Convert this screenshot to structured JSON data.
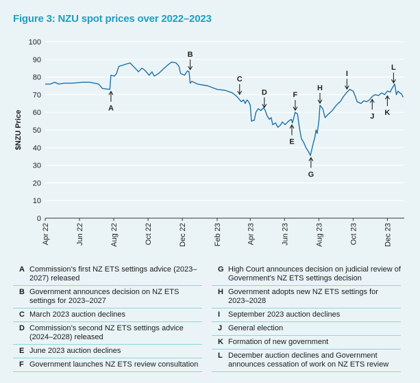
{
  "title": "Figure 3: NZU spot prices over 2022–2023",
  "colors": {
    "title": "#1e9fbf",
    "line": "#1f6fa8",
    "grid": "#ffffff",
    "rule": "#8fd3e0"
  },
  "chart_data": {
    "type": "line",
    "title": "Figure 3: NZU spot prices over 2022–2023",
    "ylabel": "$NZU Price",
    "xlabel": "",
    "ylim": [
      0,
      100
    ],
    "yticks": [
      0,
      10,
      20,
      30,
      40,
      50,
      60,
      70,
      80,
      90,
      100
    ],
    "xlim": [
      "2022-04-01",
      "2023-12-31"
    ],
    "xtick_labels": [
      "Apr 22",
      "Jun 22",
      "Aug 22",
      "Oct 22",
      "Dec 22",
      "Feb 23",
      "Apr 23",
      "Jun 23",
      "Aug 23",
      "Oct 23",
      "Dec 23"
    ],
    "xtick_dates": [
      "2022-04-01",
      "2022-06-01",
      "2022-08-01",
      "2022-10-01",
      "2022-12-01",
      "2023-02-01",
      "2023-04-01",
      "2023-06-01",
      "2023-08-01",
      "2023-10-01",
      "2023-12-01"
    ],
    "grid": true,
    "series": [
      {
        "points": [
          [
            "2022-04-01",
            76
          ],
          [
            "2022-04-10",
            76
          ],
          [
            "2022-04-18",
            77
          ],
          [
            "2022-04-25",
            76
          ],
          [
            "2022-05-05",
            76.5
          ],
          [
            "2022-05-20",
            76.5
          ],
          [
            "2022-06-05",
            77
          ],
          [
            "2022-06-20",
            77
          ],
          [
            "2022-07-05",
            76
          ],
          [
            "2022-07-12",
            73.5
          ],
          [
            "2022-07-25",
            73
          ],
          [
            "2022-07-27",
            81
          ],
          [
            "2022-08-02",
            80.5
          ],
          [
            "2022-08-06",
            82
          ],
          [
            "2022-08-10",
            86
          ],
          [
            "2022-08-20",
            87
          ],
          [
            "2022-08-30",
            88
          ],
          [
            "2022-09-08",
            85
          ],
          [
            "2022-09-14",
            83
          ],
          [
            "2022-09-20",
            85
          ],
          [
            "2022-09-25",
            84
          ],
          [
            "2022-10-03",
            81
          ],
          [
            "2022-10-08",
            83
          ],
          [
            "2022-10-12",
            80.5
          ],
          [
            "2022-10-20",
            82
          ],
          [
            "2022-10-28",
            84.5
          ],
          [
            "2022-11-06",
            87
          ],
          [
            "2022-11-12",
            88.5
          ],
          [
            "2022-11-20",
            88
          ],
          [
            "2022-11-25",
            86
          ],
          [
            "2022-11-28",
            82
          ],
          [
            "2022-12-05",
            81
          ],
          [
            "2022-12-10",
            83.5
          ],
          [
            "2022-12-13",
            83
          ],
          [
            "2022-12-15",
            76.5
          ],
          [
            "2022-12-18",
            77.5
          ],
          [
            "2022-12-28",
            76
          ],
          [
            "2023-01-15",
            75
          ],
          [
            "2023-02-01",
            73
          ],
          [
            "2023-02-15",
            72.5
          ],
          [
            "2023-02-28",
            71
          ],
          [
            "2023-03-08",
            69
          ],
          [
            "2023-03-12",
            67.5
          ],
          [
            "2023-03-16",
            66
          ],
          [
            "2023-03-20",
            67
          ],
          [
            "2023-03-23",
            65
          ],
          [
            "2023-03-26",
            67
          ],
          [
            "2023-03-29",
            66
          ],
          [
            "2023-04-01",
            64
          ],
          [
            "2023-04-03",
            55
          ],
          [
            "2023-04-08",
            55.5
          ],
          [
            "2023-04-11",
            60
          ],
          [
            "2023-04-15",
            62
          ],
          [
            "2023-04-20",
            61
          ],
          [
            "2023-04-24",
            62.5
          ],
          [
            "2023-04-27",
            61.5
          ],
          [
            "2023-05-01",
            58
          ],
          [
            "2023-05-05",
            56
          ],
          [
            "2023-05-08",
            57
          ],
          [
            "2023-05-11",
            53
          ],
          [
            "2023-05-16",
            54
          ],
          [
            "2023-05-20",
            51.5
          ],
          [
            "2023-05-24",
            52.5
          ],
          [
            "2023-05-28",
            54.5
          ],
          [
            "2023-06-02",
            53
          ],
          [
            "2023-06-08",
            55
          ],
          [
            "2023-06-13",
            56
          ],
          [
            "2023-06-15",
            54
          ],
          [
            "2023-06-20",
            60
          ],
          [
            "2023-06-24",
            59
          ],
          [
            "2023-06-27",
            52
          ],
          [
            "2023-07-01",
            45
          ],
          [
            "2023-07-05",
            43
          ],
          [
            "2023-07-09",
            40
          ],
          [
            "2023-07-13",
            38
          ],
          [
            "2023-07-17",
            35.5
          ],
          [
            "2023-07-21",
            41
          ],
          [
            "2023-07-25",
            46
          ],
          [
            "2023-07-27",
            50
          ],
          [
            "2023-07-29",
            48
          ],
          [
            "2023-08-01",
            55
          ],
          [
            "2023-08-03",
            64
          ],
          [
            "2023-08-08",
            62
          ],
          [
            "2023-08-12",
            57
          ],
          [
            "2023-08-18",
            59
          ],
          [
            "2023-08-25",
            61
          ],
          [
            "2023-09-01",
            64
          ],
          [
            "2023-09-08",
            66
          ],
          [
            "2023-09-14",
            69
          ],
          [
            "2023-09-19",
            71
          ],
          [
            "2023-09-25",
            73
          ],
          [
            "2023-10-01",
            72
          ],
          [
            "2023-10-05",
            69
          ],
          [
            "2023-10-08",
            66
          ],
          [
            "2023-10-15",
            65
          ],
          [
            "2023-10-20",
            66.5
          ],
          [
            "2023-10-25",
            66
          ],
          [
            "2023-10-30",
            67
          ],
          [
            "2023-11-04",
            69
          ],
          [
            "2023-11-09",
            70
          ],
          [
            "2023-11-15",
            69.5
          ],
          [
            "2023-11-21",
            71
          ],
          [
            "2023-11-26",
            70
          ],
          [
            "2023-12-01",
            72
          ],
          [
            "2023-12-06",
            71.5
          ],
          [
            "2023-12-10",
            74
          ],
          [
            "2023-12-14",
            76
          ],
          [
            "2023-12-17",
            70
          ],
          [
            "2023-12-20",
            72
          ],
          [
            "2023-12-23",
            71
          ],
          [
            "2023-12-26",
            70.5
          ],
          [
            "2023-12-29",
            68.5
          ]
        ]
      }
    ],
    "annotations": [
      {
        "label": "A",
        "date": "2022-07-27",
        "value": 73,
        "dir": "up"
      },
      {
        "label": "B",
        "date": "2022-12-15",
        "value": 83,
        "dir": "down"
      },
      {
        "label": "C",
        "date": "2023-03-13",
        "value": 69,
        "dir": "down"
      },
      {
        "label": "D",
        "date": "2023-04-26",
        "value": 61.5,
        "dir": "down"
      },
      {
        "label": "E",
        "date": "2023-06-14",
        "value": 54,
        "dir": "up"
      },
      {
        "label": "F",
        "date": "2023-06-20",
        "value": 60,
        "dir": "down"
      },
      {
        "label": "G",
        "date": "2023-07-18",
        "value": 35.5,
        "dir": "up"
      },
      {
        "label": "H",
        "date": "2023-08-03",
        "value": 64,
        "dir": "down"
      },
      {
        "label": "I",
        "date": "2023-09-20",
        "value": 72,
        "dir": "down"
      },
      {
        "label": "J",
        "date": "2023-11-04",
        "value": 68.5,
        "dir": "up"
      },
      {
        "label": "K",
        "date": "2023-12-01",
        "value": 70.5,
        "dir": "up"
      },
      {
        "label": "L",
        "date": "2023-12-12",
        "value": 75.5,
        "dir": "down"
      }
    ]
  },
  "legend": {
    "left": [
      {
        "key": "A",
        "text": "Commission’s first NZ ETS settings advice (2023–2027) released"
      },
      {
        "key": "B",
        "text": "Government announces decision on NZ ETS settings for 2023–2027"
      },
      {
        "key": "C",
        "text": "March 2023 auction declines"
      },
      {
        "key": "D",
        "text": "Commission’s second NZ ETS settings advice (2024–2028) released"
      },
      {
        "key": "E",
        "text": "June 2023 auction declines"
      },
      {
        "key": "F",
        "text": "Government launches NZ ETS review consultation"
      }
    ],
    "right": [
      {
        "key": "G",
        "text": "High Court announces decision on judicial review of Government’s NZ ETS settings decision"
      },
      {
        "key": "H",
        "text": "Government adopts new NZ ETS settings for 2023–2028"
      },
      {
        "key": "I",
        "text": "September 2023 auction declines"
      },
      {
        "key": "J",
        "text": "General election"
      },
      {
        "key": "K",
        "text": "Formation of new government"
      },
      {
        "key": "L",
        "text": "December auction declines and Government announces cessation of work on NZ ETS review"
      }
    ]
  }
}
